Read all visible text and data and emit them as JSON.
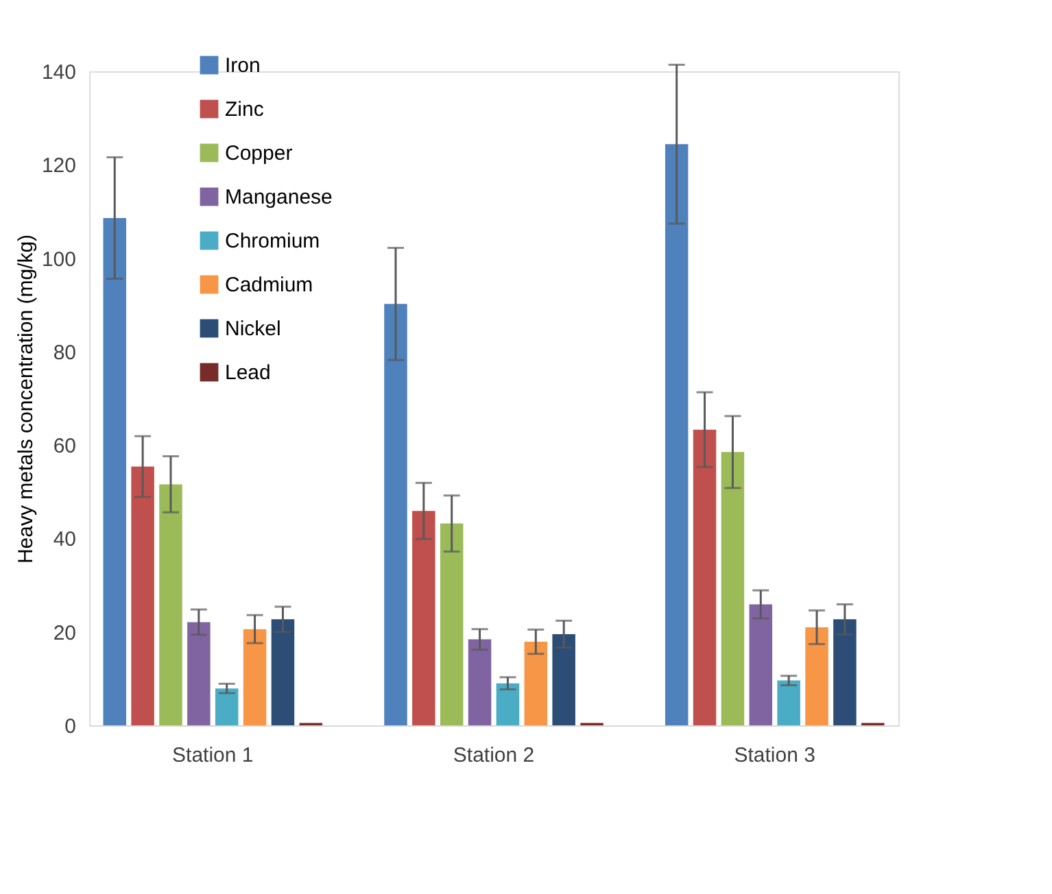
{
  "chart_data": {
    "type": "bar",
    "ylabel": "Heavy metals concentration (mg/kg)",
    "categories": [
      "Station 1",
      "Station 2",
      "Station 3"
    ],
    "ylim": [
      0,
      140
    ],
    "yticks": [
      0,
      20,
      40,
      60,
      80,
      100,
      120,
      140
    ],
    "grid": false,
    "legend": "top left",
    "series": [
      {
        "name": "Iron",
        "color": "#4f81bd",
        "values": [
          108.6,
          90.2,
          124.4
        ],
        "errors": [
          13,
          12,
          17
        ]
      },
      {
        "name": "Zinc",
        "color": "#c0504d",
        "values": [
          55.4,
          45.9,
          63.3
        ],
        "errors": [
          6.5,
          6,
          8
        ]
      },
      {
        "name": "Copper",
        "color": "#9bbb59",
        "values": [
          51.6,
          43.2,
          58.5
        ],
        "errors": [
          6,
          6,
          7.7
        ]
      },
      {
        "name": "Manganese",
        "color": "#8064a2",
        "values": [
          22.1,
          18.4,
          25.9
        ],
        "errors": [
          2.7,
          2.2,
          3
        ]
      },
      {
        "name": "Chromium",
        "color": "#4bacc6",
        "values": [
          7.9,
          9.0,
          9.6
        ],
        "errors": [
          1,
          1.3,
          1
        ]
      },
      {
        "name": "Cadmium",
        "color": "#f79646",
        "values": [
          20.6,
          17.9,
          21.0
        ],
        "errors": [
          3,
          2.6,
          3.6
        ]
      },
      {
        "name": "Nickel",
        "color": "#2c4d75",
        "values": [
          22.7,
          19.5,
          22.7
        ],
        "errors": [
          2.7,
          2.9,
          3.2
        ]
      },
      {
        "name": "Lead",
        "color": "#772c2a",
        "values": [
          0.5,
          0.5,
          0.5
        ],
        "errors": [
          null,
          null,
          null
        ]
      }
    ]
  }
}
